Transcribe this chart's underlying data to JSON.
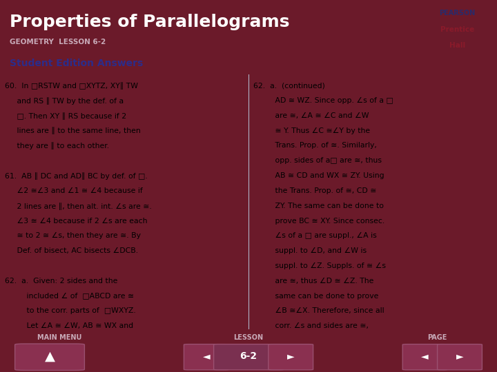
{
  "title": "Properties of Parallelograms",
  "subtitle": "GEOMETRY  LESSON 6-2",
  "section_label": "Student Edition Answers",
  "header_bg": "#6b1a2a",
  "header_text_color": "#ffffff",
  "section_bg": "#8a9bc4",
  "section_text_color": "#2c2c8a",
  "body_bg": "#d8dce8",
  "body_text_color": "#000000",
  "footer_bg": "#6b1a2a",
  "footer_text_color": "#c0a0b0",
  "nav_button_color": "#8a3050",
  "nav_button_text": "6-2",
  "pearson_box_color": "#d0ccd8",
  "left_col_text": [
    "60.  In □RSTW and □XYTZ, XY∥ TW",
    "     and RS ∥ TW by the def. of a",
    "     □. Then XY ∥ RS because if 2",
    "     lines are ∥ to the same line, then",
    "     they are ∥ to each other.",
    "",
    "61.  AB ∥ DC and AD∥ BC by def. of □.",
    "     ∠2 ≅∠3 and ∠1 ≅ ∠4 because if",
    "     2 lines are ∥, then alt. int. ∠s are ≅.",
    "     ∠3 ≅ ∠4 because if 2 ∠s are each",
    "     ≅ to 2 ≅ ∠s, then they are ≅. By",
    "     Def. of bisect, AC bisects ∠DCB.",
    "",
    "62.  a.  Given: 2 sides and the",
    "         included ∠ of  □ABCD are ≅",
    "         to the corr. parts of  □WXYZ.",
    "         Let ∠A ≅ ∠W, AB ≅ WX and"
  ],
  "right_col_text": [
    "62.  a.  (continued)",
    "         AD ≅ WZ. Since opp. ∠s of a □",
    "         are ≅, ∠A ≅ ∠C and ∠W",
    "         ≅ Y. Thus ∠C ≅∠Y by the",
    "         Trans. Prop. of ≅. Similarly,",
    "         opp. sides of a□ are ≅, thus",
    "         AB ≅ CD and WX ≅ ZY. Using",
    "         the Trans. Prop. of ≅, CD ≅",
    "         ZY. The same can be done to",
    "         prove BC ≅ XY. Since consec.",
    "         ∠s of a □ are suppl., ∠A is",
    "         suppl. to ∠D, and ∠W is",
    "         suppl. to ∠Z. Suppls. of ≅ ∠s",
    "         are ≅, thus ∠D ≅ ∠Z. The",
    "         same can be done to prove",
    "         ∠B ≅∠X. Therefore, since all",
    "         corr. ∠s and sides are ≅,"
  ],
  "footer_labels": [
    "MAIN MENU",
    "LESSON",
    "PAGE"
  ]
}
